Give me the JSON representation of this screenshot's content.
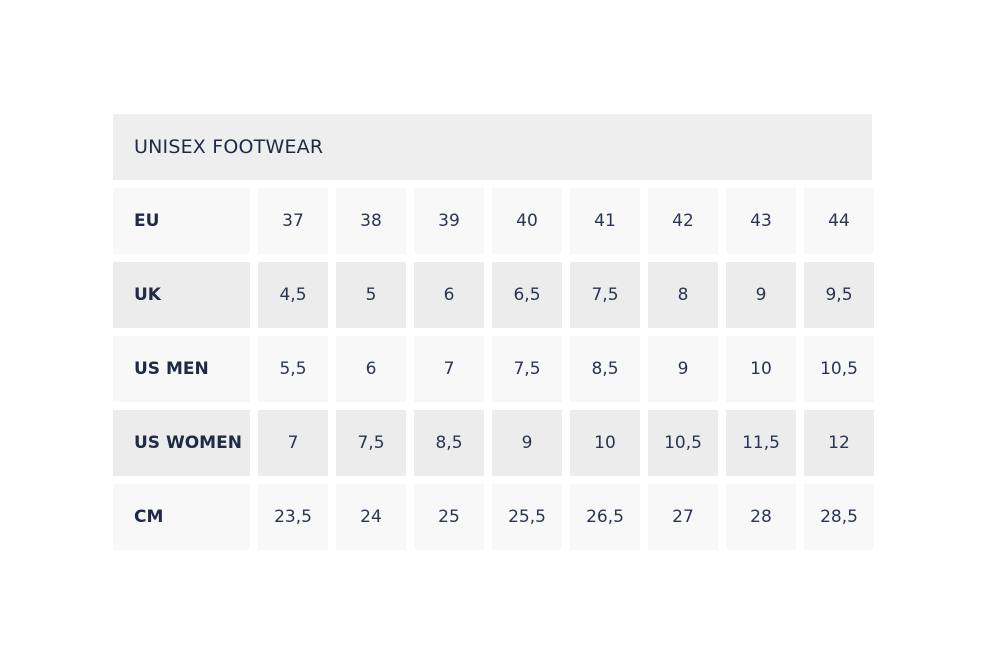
{
  "title": "UNISEX FOOTWEAR",
  "rows": [
    {
      "label": "EU",
      "values": [
        "37",
        "38",
        "39",
        "40",
        "41",
        "42",
        "43",
        "44"
      ]
    },
    {
      "label": "UK",
      "values": [
        "4,5",
        "5",
        "6",
        "6,5",
        "7,5",
        "8",
        "9",
        "9,5"
      ]
    },
    {
      "label": "US MEN",
      "values": [
        "5,5",
        "6",
        "7",
        "7,5",
        "8,5",
        "9",
        "10",
        "10,5"
      ]
    },
    {
      "label": "US WOMEN",
      "values": [
        "7",
        "7,5",
        "8,5",
        "9",
        "10",
        "10,5",
        "11,5",
        "12"
      ]
    },
    {
      "label": "CM",
      "values": [
        "23,5",
        "24",
        "25",
        "25,5",
        "26,5",
        "27",
        "28",
        "28,5"
      ]
    }
  ]
}
